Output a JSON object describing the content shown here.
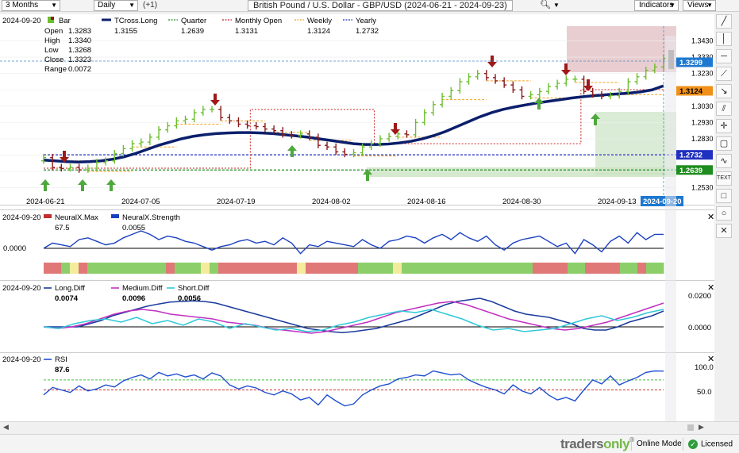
{
  "toolbar": {
    "range": "3 Months",
    "interval": "Daily",
    "offset": "(+1)",
    "title": "British Pound / U.S. Dollar - GBP/USD (2024-06-21 - 2024-09-23)",
    "search_icon": "magnifier-icon",
    "indicators_label": "Indicators",
    "views_label": "Views"
  },
  "colors": {
    "up": "#6cbf2e",
    "down": "#8b1a1a",
    "tcross": "#0b1f6b",
    "quarter": "#1e8c1e",
    "monthly": "#cc2222",
    "weekly": "#f0a020",
    "yearly": "#2030c0",
    "neural_red": "#e07878",
    "neural_green": "#8ccf6a",
    "neural_yellow": "#f4ec9c",
    "long_diff": "#1a3a9c",
    "medium_diff": "#c030c0",
    "short_diff": "#30c8d8",
    "rsi": "#2050d0"
  },
  "price_header": {
    "date": "2024-09-20",
    "bar_label": "Bar",
    "open_label": "Open",
    "open": "1.3283",
    "high_label": "High",
    "high": "1.3340",
    "low_label": "Low",
    "low": "1.3268",
    "close_label": "Close",
    "close": "1.3323",
    "range_label": "Range",
    "range": "0.0072",
    "legend": [
      {
        "name": "TCross.Long",
        "value": "1.3155"
      },
      {
        "name": "Quarter",
        "value": "1.2639"
      },
      {
        "name": "Monthly Open",
        "value": "1.3131"
      },
      {
        "name": "Weekly",
        "value": "1.3124"
      },
      {
        "name": "Yearly",
        "value": "1.2732"
      }
    ]
  },
  "neural_header": {
    "date": "2024-09-20",
    "legend": [
      {
        "name": "NeuralX.Max",
        "value": "67.5"
      },
      {
        "name": "NeuralX.Strength",
        "value": "0.0055"
      }
    ],
    "axis_label": "0.0000"
  },
  "diff_header": {
    "date": "2024-09-20",
    "legend": [
      {
        "name": "Long.Diff",
        "value": "0.0074"
      },
      {
        "name": "Medium.Diff",
        "value": "0.0096"
      },
      {
        "name": "Short.Diff",
        "value": "0.0056"
      }
    ],
    "axis_labels": [
      "0.0200",
      "0.0000"
    ]
  },
  "rsi_header": {
    "date": "2024-09-20",
    "legend": [
      {
        "name": "RSI",
        "value": "87.6"
      }
    ],
    "axis_labels": [
      "100.0",
      "50.0"
    ]
  },
  "chart_data": [
    {
      "type": "bar",
      "title": "British Pound / U.S. Dollar - GBP/USD (2024-06-21 - 2024-09-23)",
      "x_tick_labels": [
        "2024-06-21",
        "2024-07-05",
        "2024-07-19",
        "2024-08-02",
        "2024-08-16",
        "2024-08-30",
        "2024-09-13",
        "2024-09-20"
      ],
      "y_tick_labels": [
        "1.3430",
        "1.3330",
        "1.3230",
        "1.3130",
        "1.3030",
        "1.2930",
        "1.2830",
        "1.2730",
        "1.2630",
        "1.2530"
      ],
      "ylim": [
        1.248,
        1.352
      ],
      "price_tags": [
        {
          "label": "1.3299",
          "value": 1.3299,
          "color": "#1e78d0"
        },
        {
          "label": "1.3124",
          "value": 1.3124,
          "color": "#f09018"
        },
        {
          "label": "1.2732",
          "value": 1.2732,
          "color": "#2030c0"
        },
        {
          "label": "1.2639",
          "value": 1.2639,
          "color": "#1e8c1e"
        }
      ],
      "bars_close": [
        1.2715,
        1.2655,
        1.2648,
        1.2655,
        1.264,
        1.265,
        1.2685,
        1.2695,
        1.274,
        1.277,
        1.28,
        1.281,
        1.284,
        1.2885,
        1.291,
        1.294,
        1.295,
        1.299,
        1.301,
        1.301,
        1.296,
        1.294,
        1.292,
        1.291,
        1.2905,
        1.289,
        1.288,
        1.2855,
        1.285,
        1.286,
        1.284,
        1.279,
        1.278,
        1.275,
        1.2735,
        1.2745,
        1.278,
        1.28,
        1.283,
        1.2845,
        1.286,
        1.2855,
        1.293,
        1.299,
        1.304,
        1.309,
        1.3125,
        1.318,
        1.321,
        1.323,
        1.3205,
        1.3185,
        1.316,
        1.313,
        1.309,
        1.31,
        1.312,
        1.315,
        1.317,
        1.3195,
        1.3195,
        1.312,
        1.31,
        1.309,
        1.3095,
        1.312,
        1.318,
        1.321,
        1.325,
        1.327,
        1.3323
      ],
      "tcross_long": [
        1.27,
        1.2695,
        1.269,
        1.2688,
        1.269,
        1.2695,
        1.2705,
        1.272,
        1.274,
        1.2765,
        1.279,
        1.281,
        1.283,
        1.2845,
        1.2855,
        1.2862,
        1.2866,
        1.2868,
        1.2868,
        1.2866,
        1.2862,
        1.2855,
        1.2848,
        1.284,
        1.283,
        1.282,
        1.281,
        1.28,
        1.2795,
        1.2795,
        1.2798,
        1.2805,
        1.2815,
        1.283,
        1.285,
        1.2875,
        1.2905,
        1.2935,
        1.2965,
        1.299,
        1.301,
        1.3025,
        1.3038,
        1.305,
        1.306,
        1.307,
        1.308,
        1.3088,
        1.3095,
        1.31,
        1.3105,
        1.311,
        1.3118,
        1.313,
        1.3155
      ],
      "monthly_open": [
        1.265,
        1.265,
        1.265,
        1.265,
        1.265,
        1.301,
        1.301,
        1.301,
        1.28,
        1.28,
        1.28,
        1.28,
        1.28,
        1.3131,
        1.3131,
        1.3131
      ],
      "weekly": 1.3124,
      "yearly": 1.2732,
      "quarter": 1.2639
    },
    {
      "type": "line",
      "title": "NeuralX",
      "series": [
        {
          "name": "NeuralX.Strength",
          "values": [
            0.0,
            0.3,
            0.2,
            0.1,
            0.5,
            0.6,
            0.4,
            0.2,
            0.3,
            0.6,
            0.8,
            1.0,
            0.8,
            0.5,
            0.7,
            0.6,
            0.4,
            0.3,
            0.1,
            -0.1,
            0.1,
            0.2,
            0.4,
            0.5,
            0.3,
            0.4,
            0.2,
            0.6,
            0.3,
            -0.3,
            0.2,
            0.1,
            0.4,
            0.3,
            0.2,
            0.1,
            0.5,
            0.2,
            0.0,
            0.4,
            0.5,
            0.7,
            0.6,
            0.3,
            0.6,
            0.8,
            0.5,
            0.9,
            0.6,
            0.4,
            0.7,
            0.2,
            -0.1,
            0.3,
            0.5,
            0.6,
            0.7,
            0.4,
            0.1,
            0.3,
            -0.3,
            0.5,
            0.2,
            -0.2,
            0.4,
            0.7,
            0.3,
            0.9,
            0.5,
            0.8,
            0.8
          ]
        }
      ],
      "regime": [
        "r",
        "r",
        "g",
        "y",
        "r",
        "g",
        "g",
        "g",
        "g",
        "g",
        "g",
        "g",
        "g",
        "g",
        "r",
        "g",
        "g",
        "g",
        "y",
        "g",
        "r",
        "r",
        "r",
        "r",
        "r",
        "r",
        "r",
        "r",
        "r",
        "y",
        "r",
        "r",
        "r",
        "r",
        "r",
        "r",
        "g",
        "g",
        "g",
        "g",
        "y",
        "g",
        "g",
        "g",
        "g",
        "g",
        "g",
        "g",
        "g",
        "g",
        "g",
        "g",
        "g",
        "g",
        "g",
        "g",
        "r",
        "r",
        "r",
        "r",
        "g",
        "g",
        "r",
        "r",
        "r",
        "r",
        "g",
        "g",
        "r",
        "g",
        "g"
      ]
    },
    {
      "type": "line",
      "title": "Diff",
      "series": [
        {
          "name": "Long.Diff",
          "values": [
            0.0,
            0.0,
            0.0,
            0.0,
            0.1,
            0.2,
            0.35,
            0.45,
            0.55,
            0.65,
            0.72,
            0.78,
            0.8,
            0.82,
            0.8,
            0.75,
            0.65,
            0.55,
            0.45,
            0.35,
            0.25,
            0.15,
            0.05,
            -0.05,
            -0.1,
            -0.15,
            -0.18,
            -0.15,
            -0.1,
            -0.05,
            0.05,
            0.15,
            0.25,
            0.4,
            0.55,
            0.7,
            0.8,
            0.85,
            0.9,
            0.8,
            0.65,
            0.5,
            0.4,
            0.35,
            0.3,
            0.2,
            0.1,
            -0.05,
            -0.1,
            -0.1,
            0.0,
            0.15,
            0.25,
            0.35,
            0.5
          ]
        },
        {
          "name": "Medium.Diff",
          "values": [
            0.0,
            -0.05,
            0.0,
            0.1,
            0.25,
            0.4,
            0.5,
            0.55,
            0.5,
            0.4,
            0.35,
            0.3,
            0.25,
            0.15,
            0.1,
            0.05,
            -0.05,
            -0.1,
            -0.15,
            -0.2,
            -0.15,
            -0.05,
            0.05,
            0.15,
            0.3,
            0.45,
            0.55,
            0.65,
            0.75,
            0.8,
            0.7,
            0.55,
            0.4,
            0.25,
            0.15,
            0.05,
            -0.05,
            -0.1,
            -0.05,
            0.05,
            0.15,
            0.3,
            0.45,
            0.6,
            0.75
          ]
        },
        {
          "name": "Short.Diff",
          "values": [
            0.0,
            -0.05,
            0.1,
            0.2,
            0.25,
            0.15,
            0.3,
            0.1,
            0.2,
            0.05,
            0.25,
            0.15,
            -0.05,
            0.1,
            0.0,
            -0.1,
            -0.05,
            -0.15,
            -0.1,
            0.05,
            0.15,
            0.3,
            0.4,
            0.5,
            0.45,
            0.55,
            0.4,
            0.25,
            0.05,
            -0.1,
            -0.05,
            -0.15,
            -0.1,
            -0.05,
            0.1,
            0.25,
            0.35,
            0.2,
            0.3,
            0.45,
            0.55
          ]
        }
      ],
      "ylim": [
        -0.01,
        0.025
      ]
    },
    {
      "type": "line",
      "title": "RSI",
      "series": [
        {
          "name": "RSI",
          "values": [
            40,
            55,
            50,
            45,
            58,
            48,
            52,
            60,
            56,
            68,
            75,
            80,
            72,
            85,
            78,
            82,
            76,
            80,
            72,
            84,
            78,
            60,
            52,
            58,
            54,
            45,
            40,
            48,
            42,
            30,
            35,
            20,
            40,
            28,
            18,
            22,
            40,
            50,
            58,
            62,
            72,
            75,
            80,
            78,
            88,
            84,
            80,
            82,
            70,
            62,
            55,
            50,
            42,
            60,
            48,
            42,
            55,
            40,
            30,
            35,
            28,
            50,
            70,
            62,
            78,
            60,
            68,
            75,
            85,
            88,
            87.6
          ]
        }
      ],
      "ylim": [
        0,
        100
      ],
      "levels": [
        70,
        50
      ]
    }
  ]
}
